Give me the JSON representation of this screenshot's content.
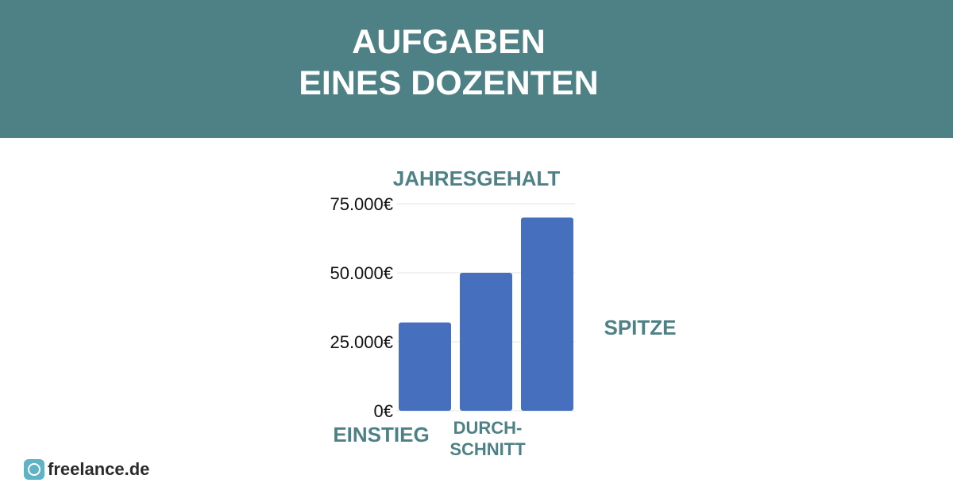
{
  "header": {
    "title_line1": "AUFGABEN",
    "title_line2": "EINES DOZENTEN",
    "background_color": "#4e8186"
  },
  "chart_data": {
    "type": "bar",
    "title": "JAHRESGEHALT",
    "categories": [
      "EINSTIEG",
      "DURCH-\nSCHNITT",
      "SPITZE"
    ],
    "values": [
      32000,
      50000,
      70000
    ],
    "ylim": [
      0,
      75000
    ],
    "yticks": [
      0,
      25000,
      50000,
      75000
    ],
    "ytick_labels": [
      "0€",
      "25.000€",
      "50.000€",
      "75.000€"
    ],
    "grid": true,
    "bar_color": "#4670be",
    "label_color": "#4e8186"
  },
  "brand": {
    "name": "freelance.de",
    "icon": "freelance-logo-icon"
  }
}
